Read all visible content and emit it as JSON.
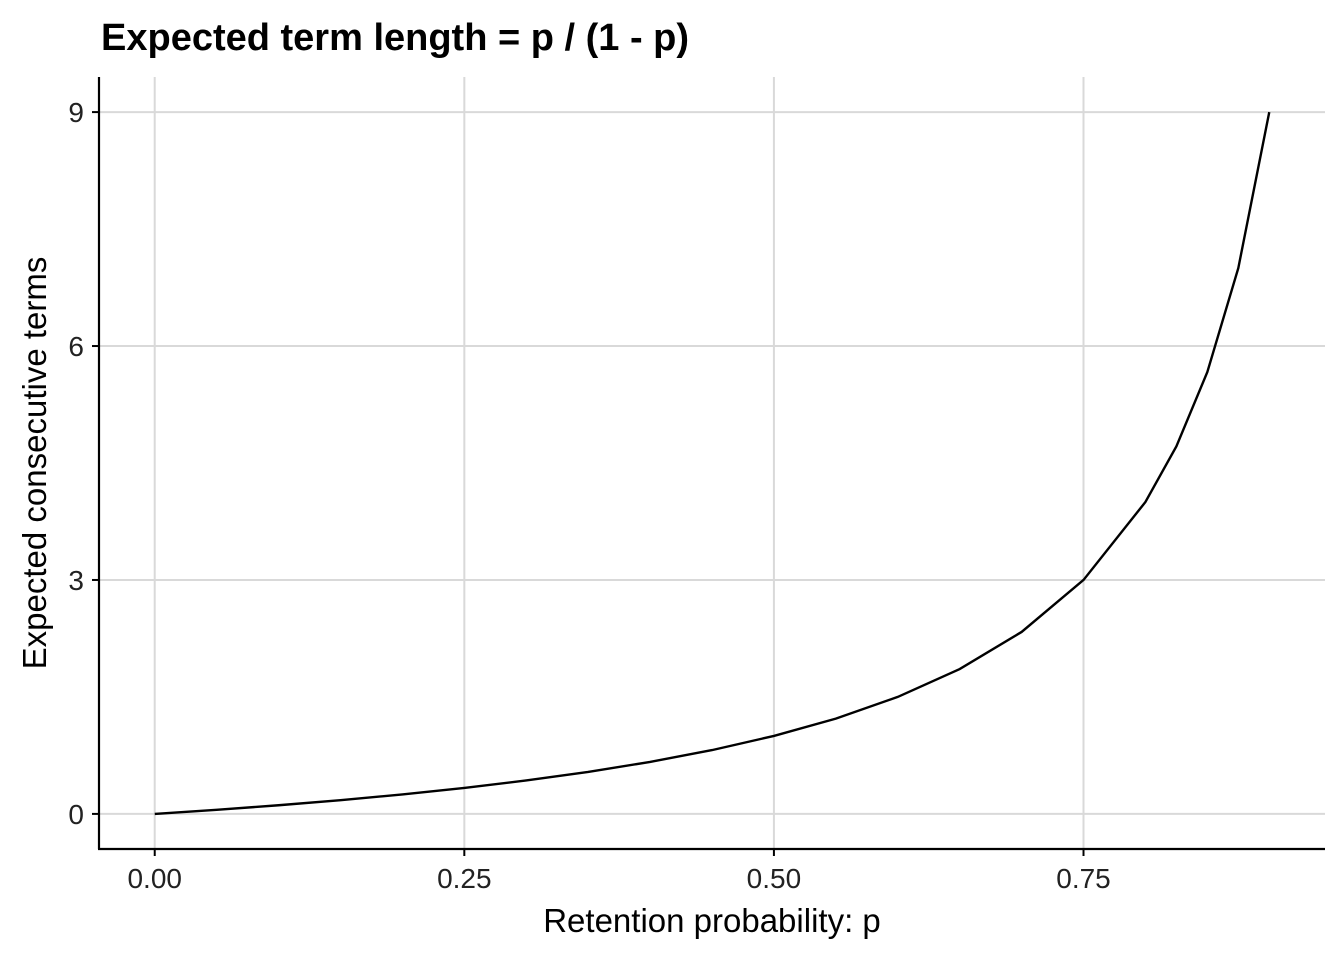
{
  "chart_data": {
    "type": "line",
    "title": "Expected term length = p / (1 - p)",
    "xlabel": "Retention probability: p",
    "ylabel": "Expected consecutive terms",
    "xlim": [
      -0.045,
      0.945
    ],
    "ylim": [
      -0.45,
      9.45
    ],
    "x_ticks": [
      0,
      0.25,
      0.5,
      0.75
    ],
    "x_tick_labels": [
      "0.00",
      "0.25",
      "0.50",
      "0.75"
    ],
    "y_ticks": [
      0,
      3,
      6,
      9
    ],
    "y_tick_labels": [
      "0",
      "3",
      "6",
      "9"
    ],
    "grid": true,
    "legend": "none",
    "series": [
      {
        "color": "#000000",
        "x": [
          0,
          0.05,
          0.1,
          0.15,
          0.2,
          0.25,
          0.3,
          0.35,
          0.4,
          0.45,
          0.5,
          0.55,
          0.6,
          0.65,
          0.7,
          0.75,
          0.8,
          0.825,
          0.85,
          0.875,
          0.9
        ],
        "y": [
          0,
          0.0526,
          0.1111,
          0.1765,
          0.25,
          0.3333,
          0.4286,
          0.5385,
          0.6667,
          0.8182,
          1.0,
          1.2222,
          1.5,
          1.8571,
          2.3333,
          3.0,
          4.0,
          4.7143,
          5.6667,
          7.0,
          9.0
        ]
      }
    ]
  }
}
